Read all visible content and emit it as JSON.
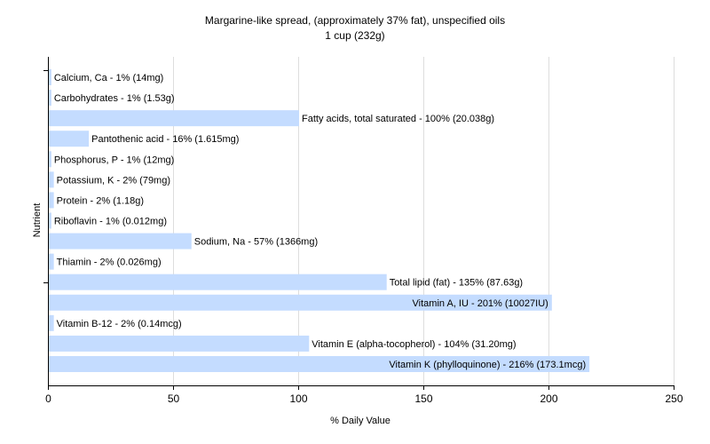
{
  "chart_data": {
    "type": "bar",
    "orientation": "horizontal",
    "title": "Margarine-like spread, (approximately 37% fat), unspecified oils",
    "subtitle": "1 cup (232g)",
    "xlabel": "% Daily Value",
    "ylabel": "Nutrient",
    "xlim": [
      0,
      250
    ],
    "xticks": [
      0,
      50,
      100,
      150,
      200,
      250
    ],
    "grid": true,
    "bar_color": "#c4dcff",
    "categories": [
      "Calcium, Ca",
      "Carbohydrates",
      "Fatty acids, total saturated",
      "Pantothenic acid",
      "Phosphorus, P",
      "Potassium, K",
      "Protein",
      "Riboflavin",
      "Sodium, Na",
      "Thiamin",
      "Total lipid (fat)",
      "Vitamin A, IU",
      "Vitamin B-12",
      "Vitamin E (alpha-tocopherol)",
      "Vitamin K (phylloquinone)"
    ],
    "values": [
      1,
      1,
      100,
      16,
      1,
      2,
      2,
      1,
      57,
      2,
      135,
      201,
      2,
      104,
      216
    ],
    "labels": [
      "Calcium, Ca - 1% (14mg)",
      "Carbohydrates - 1% (1.53g)",
      "Fatty acids, total saturated - 100% (20.038g)",
      "Pantothenic acid - 16% (1.615mg)",
      "Phosphorus, P - 1% (12mg)",
      "Potassium, K - 2% (79mg)",
      "Protein - 2% (1.18g)",
      "Riboflavin - 1% (0.012mg)",
      "Sodium, Na - 57% (1366mg)",
      "Thiamin - 2% (0.026mg)",
      "Total lipid (fat) - 135% (87.63g)",
      "Vitamin A, IU - 201% (10027IU)",
      "Vitamin B-12 - 2% (0.14mcg)",
      "Vitamin E (alpha-tocopherol) - 104% (31.20mg)",
      "Vitamin K (phylloquinone) - 216% (173.1mcg)"
    ]
  }
}
